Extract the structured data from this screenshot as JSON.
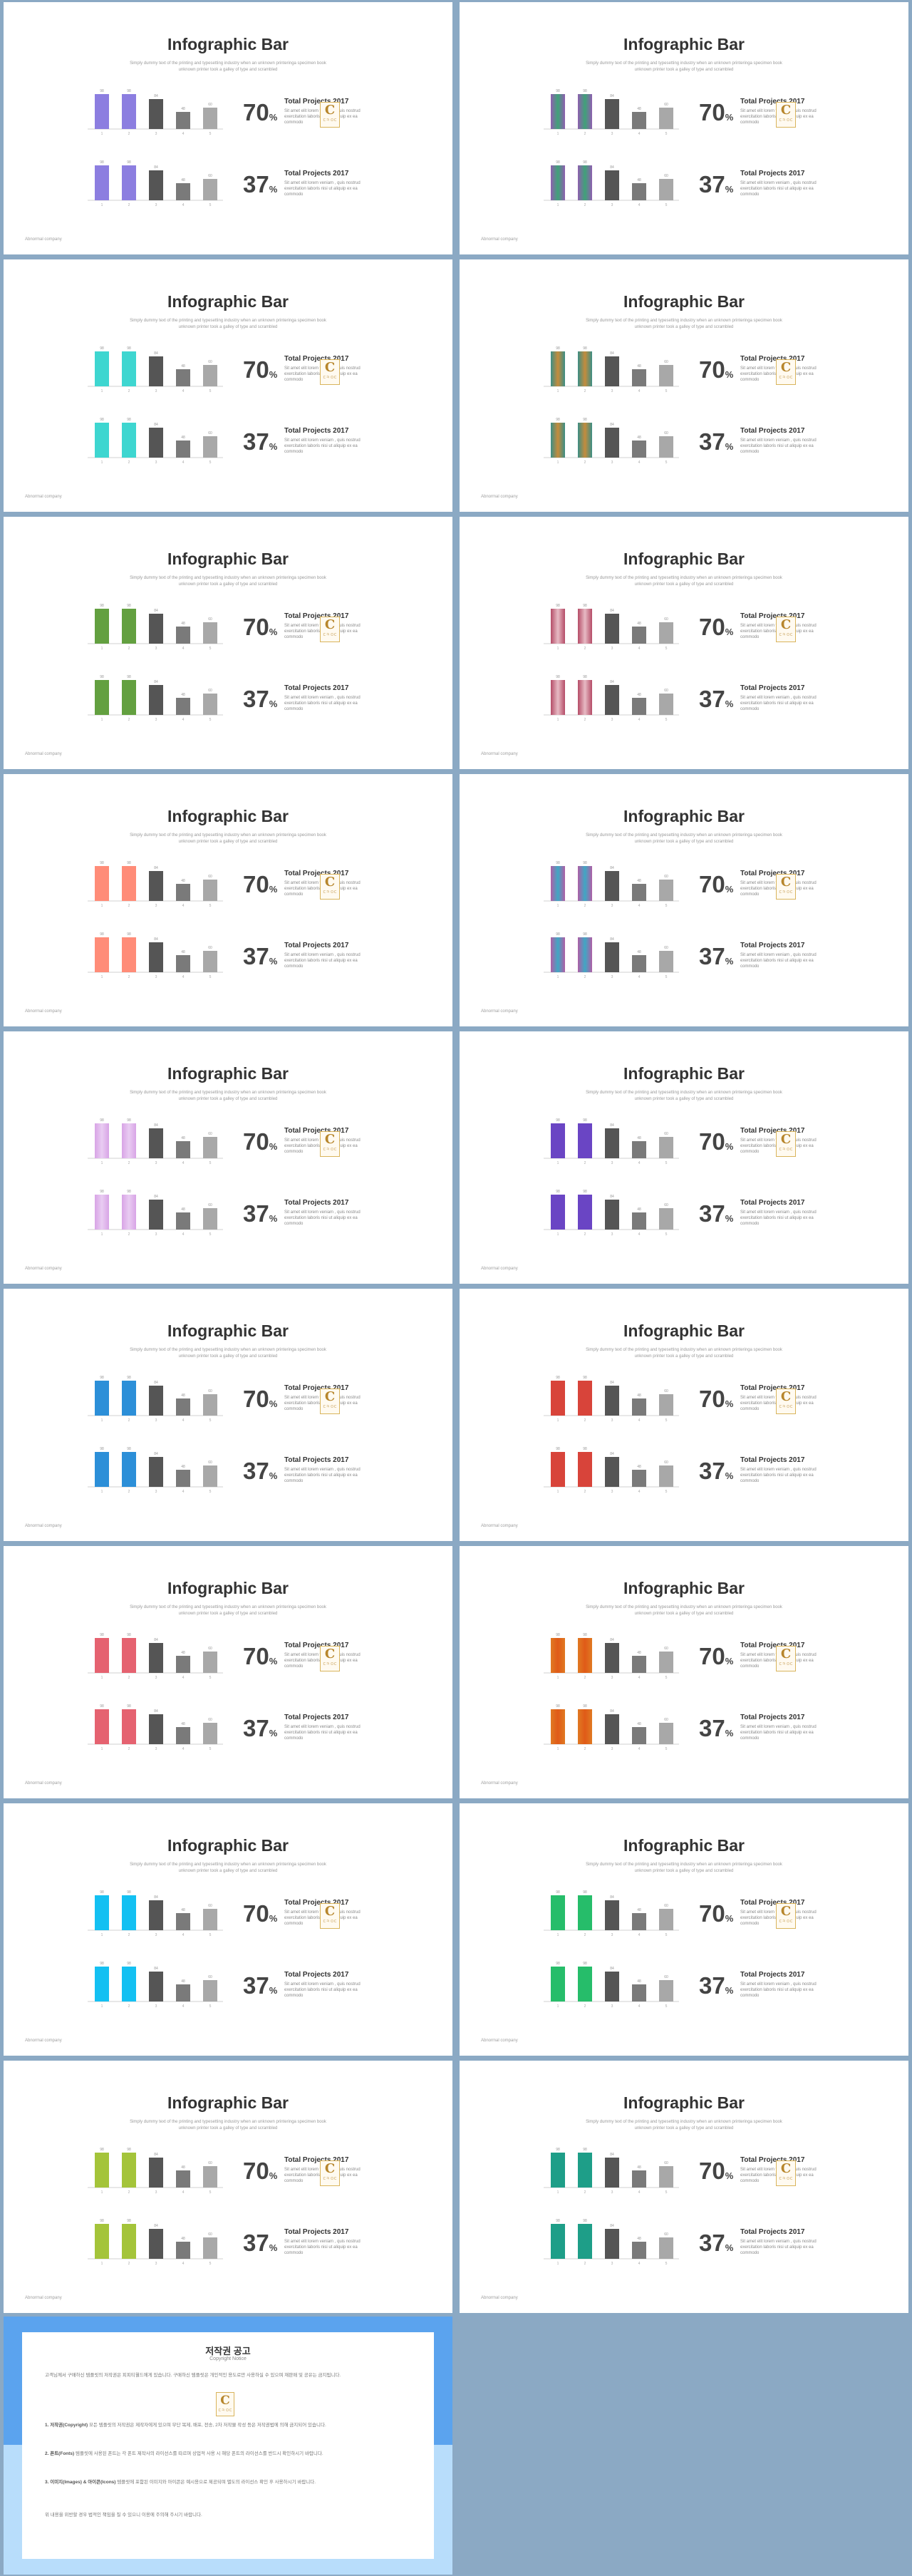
{
  "slide_common": {
    "title": "Infographic Bar",
    "subtitle": "Simply dummy text of the printing and typesetting industry when an unknown printeringa specimen book unknown printer took a galley of type and scrambled",
    "stat_top": {
      "percent": "70",
      "percent_sign": "%",
      "heading": "Total Projects 2017",
      "body": "Sit amet elit lorem veniam , quis nostrud exercitation laboris nisi ut aliquip ex ea commodo"
    },
    "stat_bottom": {
      "percent": "37",
      "percent_sign": "%",
      "heading": "Total Projects 2017",
      "body": "Sit amet elit lorem veniam , quis nostrud exercitation laboris nisi ut aliquip ex ea commodo"
    },
    "footer": "Abnormal company",
    "watermark_letter": "C",
    "watermark_small": "ㄷㅋ ㅁㄷ"
  },
  "chart_data": {
    "type": "bar",
    "categories": [
      "1",
      "2",
      "3",
      "4",
      "5"
    ],
    "top_values": [
      98,
      98,
      84,
      48,
      60
    ],
    "bottom_values": [
      98,
      98,
      84,
      48,
      60
    ],
    "ylim": [
      0,
      100
    ]
  },
  "slides": [
    {
      "accent": "#8C7EE0",
      "accent2": "#8C7EE0"
    },
    {
      "accent": "#8F5FB0",
      "accent2": "#3FA278"
    },
    {
      "accent": "#3ED6D0",
      "accent2": "#3ED6D0"
    },
    {
      "accent": "#3C8E86",
      "accent2": "#C48C3C"
    },
    {
      "accent": "#63A040",
      "accent2": "#63A040"
    },
    {
      "accent": "#B54D68",
      "accent2": "#E7BAC4"
    },
    {
      "accent": "#FF8C78",
      "accent2": "#FF8C78"
    },
    {
      "accent": "#B05FA6",
      "accent2": "#3FA7C4"
    },
    {
      "accent": "#D8A4E6",
      "accent2": "#E9CCF2"
    },
    {
      "accent": "#6A45C4",
      "accent2": "#6A45C4"
    },
    {
      "accent": "#2C8FD8",
      "accent2": "#2C8FD8"
    },
    {
      "accent": "#D8443A",
      "accent2": "#D8443A"
    },
    {
      "accent": "#E56270",
      "accent2": "#E56270"
    },
    {
      "accent": "#E07A22",
      "accent2": "#E05A18"
    },
    {
      "accent": "#13C0F2",
      "accent2": "#13C0F2"
    },
    {
      "accent": "#26BD6A",
      "accent2": "#26BD6A"
    },
    {
      "accent": "#A4C43A",
      "accent2": "#A4C43A"
    },
    {
      "accent": "#1E9E88",
      "accent2": "#1E9E88"
    }
  ],
  "copyright": {
    "title": "저작권 공고",
    "subtitle": "Copyright Notice",
    "intro": "고객님께서 구매하신 템플릿의 저작권은 피피티월드에게 있습니다. 구매하신 템플릿은 개인적인 용도로만 사용하실 수 있으며 재판매 및 공유는 금지됩니다.",
    "p1_head": "1. 저작권(Copyright)",
    "p1": "모든 템플릿의 저작권은 제작자에게 있으며 무단 복제, 배포, 전송, 2차 저작물 작성 등은 저작권법에 의해 금지되어 있습니다.",
    "p2_head": "2. 폰트(Fonts)",
    "p2": "템플릿에 사용된 폰트는 각 폰트 제작사의 라이선스를 따르며 상업적 사용 시 해당 폰트의 라이선스를 반드시 확인하시기 바랍니다.",
    "p3_head": "3. 이미지(Images) & 아이콘(Icons)",
    "p3": "템플릿에 포함된 이미지와 아이콘은 예시용으로 제공되며 별도의 라이선스 확인 후 사용하시기 바랍니다.",
    "outro": "위 내용을 위반할 경우 법적인 책임을 질 수 있으니 이용에 주의해 주시기 바랍니다."
  }
}
